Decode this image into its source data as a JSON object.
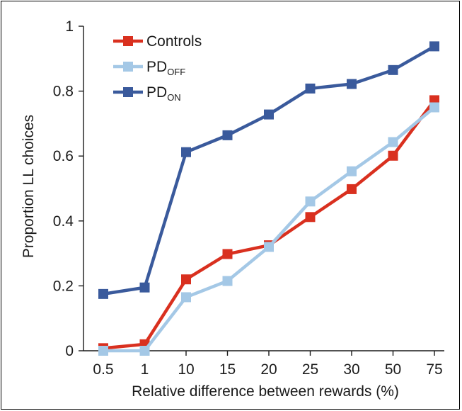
{
  "chart_data": {
    "type": "line",
    "categories": [
      "0.5",
      "1",
      "10",
      "15",
      "20",
      "25",
      "30",
      "50",
      "75"
    ],
    "xlabel": "Relative difference between rewards (%)",
    "ylabel": "Proportion LL choices",
    "ylim": [
      0,
      1
    ],
    "yticks": [
      "0",
      "0.2",
      "0.4",
      "0.6",
      "0.8",
      "1"
    ],
    "grid": false,
    "legend_position": "top-left",
    "series": [
      {
        "name": "Controls",
        "name_main": "Controls",
        "name_sub": "",
        "color": "#d9301f",
        "values": [
          0.008,
          0.02,
          0.22,
          0.298,
          0.325,
          0.412,
          0.498,
          0.601,
          0.772
        ]
      },
      {
        "name": "PDOFF",
        "name_main": "PD",
        "name_sub": "OFF",
        "color": "#a4c8e6",
        "values": [
          0.0,
          0.0,
          0.165,
          0.215,
          0.32,
          0.46,
          0.553,
          0.643,
          0.75
        ]
      },
      {
        "name": "PDON",
        "name_main": "PD",
        "name_sub": "ON",
        "color": "#3a5a9c",
        "values": [
          0.175,
          0.195,
          0.612,
          0.664,
          0.728,
          0.808,
          0.822,
          0.865,
          0.938
        ]
      }
    ]
  }
}
